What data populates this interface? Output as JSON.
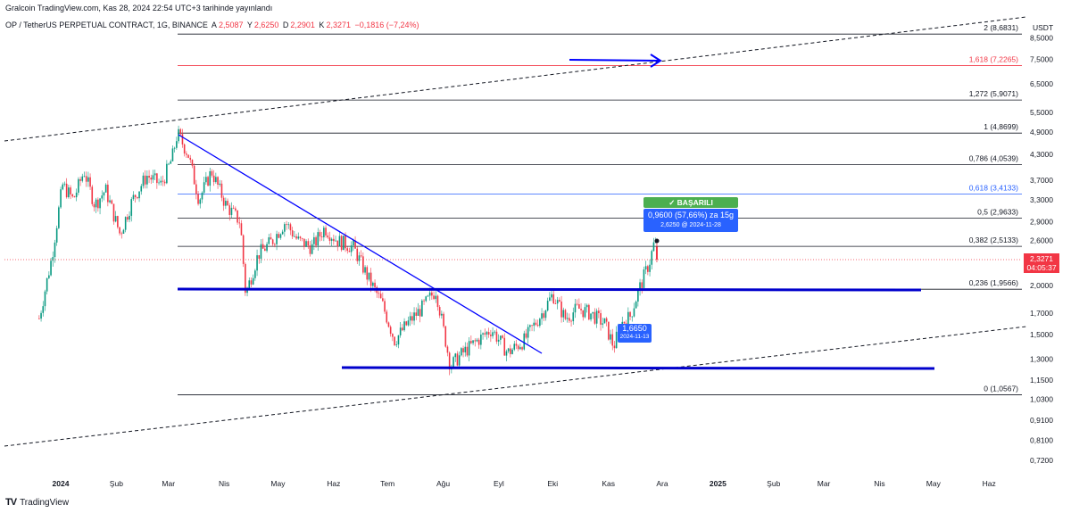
{
  "header": {
    "credit": "Gralcoin TradingView.com, Kas 28, 2024 22:54 UTC+3 tarihinde yayınlandı",
    "symbol": "OP / TetherUS PERPETUAL CONTRACT, 1G, BINANCE",
    "open_label": "A",
    "open": "2,5087",
    "high_label": "Y",
    "high": "2,6250",
    "low_label": "D",
    "low": "2,2901",
    "close_label": "K",
    "close": "2,3271",
    "change": "−0,1816 (−7,24%)"
  },
  "footer": {
    "logo": "TV",
    "brand": "TradingView"
  },
  "price_axis": {
    "currency": "USDT",
    "current_price": "2,3271",
    "countdown": "04:05:37"
  },
  "annotations": {
    "success_badge": "✓ BAŞARILI",
    "projection_main": "0,9600 (57,66%) za 15g",
    "projection_sub": "2,6250 @ 2024-11-28",
    "entry_main": "1,6650",
    "entry_sub": "2024-11-13"
  },
  "colors": {
    "up": "#089981",
    "down": "#f23645",
    "trendline": "#0000ff",
    "fib_black": "#131722",
    "fib_red": "#f23645",
    "fib_blue": "#2962ff",
    "success": "#4caf50",
    "label_blue": "#2962ff"
  },
  "chart_data": {
    "type": "candlestick",
    "scale": "log",
    "yticks": [
      "8,5000",
      "7,5000",
      "6,5000",
      "5,5000",
      "4,9000",
      "4,3000",
      "3,7000",
      "3,3000",
      "2,9000",
      "2,6000",
      "2,3000",
      "2,0000",
      "1,7000",
      "1,5000",
      "1,3000",
      "1,1500",
      "1,0300",
      "0,9100",
      "0,8100",
      "0,7200"
    ],
    "ytick_values": [
      8.5,
      7.5,
      6.5,
      5.5,
      4.9,
      4.3,
      3.7,
      3.3,
      2.9,
      2.6,
      2.3,
      2.0,
      1.7,
      1.5,
      1.3,
      1.15,
      1.03,
      0.91,
      0.81,
      0.72
    ],
    "xticks": [
      "2024",
      "Şub",
      "Mar",
      "Nis",
      "May",
      "Haz",
      "Tem",
      "Ağu",
      "Eyl",
      "Eki",
      "Kas",
      "Ara",
      "2025",
      "Şub",
      "Mar",
      "Nis",
      "May",
      "Haz"
    ],
    "xtick_dates": [
      "2024-01-01",
      "2024-02-01",
      "2024-03-01",
      "2024-04-01",
      "2024-05-01",
      "2024-06-01",
      "2024-07-01",
      "2024-08-01",
      "2024-09-01",
      "2024-10-01",
      "2024-11-01",
      "2024-12-01",
      "2025-01-01",
      "2025-02-01",
      "2025-03-01",
      "2025-04-01",
      "2025-05-01",
      "2025-06-01"
    ],
    "fib_levels": [
      {
        "label": "2 (8,6831)",
        "value": 8.6831,
        "color": "#131722"
      },
      {
        "label": "1,618 (7,2265)",
        "value": 7.2265,
        "color": "#f23645"
      },
      {
        "label": "1,272 (5,9071)",
        "value": 5.9071,
        "color": "#131722"
      },
      {
        "label": "1 (4,8699)",
        "value": 4.8699,
        "color": "#131722"
      },
      {
        "label": "0,786 (4,0539)",
        "value": 4.0539,
        "color": "#131722"
      },
      {
        "label": "0,618 (3,4133)",
        "value": 3.4133,
        "color": "#2962ff"
      },
      {
        "label": "0,5 (2,9633)",
        "value": 2.9633,
        "color": "#131722"
      },
      {
        "label": "0,382 (2,5133)",
        "value": 2.5133,
        "color": "#131722"
      },
      {
        "label": "0,236 (1,9566)",
        "value": 1.9566,
        "color": "#131722"
      },
      {
        "label": "0 (1,0567)",
        "value": 1.0567,
        "color": "#131722"
      }
    ],
    "price_path": [
      [
        "2023-12-20",
        1.65
      ],
      [
        "2023-12-27",
        2.35
      ],
      [
        "2024-01-02",
        3.6
      ],
      [
        "2024-01-08",
        3.3
      ],
      [
        "2024-01-14",
        3.9
      ],
      [
        "2024-01-20",
        3.2
      ],
      [
        "2024-01-26",
        3.5
      ],
      [
        "2024-02-03",
        2.7
      ],
      [
        "2024-02-10",
        3.3
      ],
      [
        "2024-02-18",
        3.8
      ],
      [
        "2024-02-26",
        3.6
      ],
      [
        "2024-03-03",
        4.2
      ],
      [
        "2024-03-06",
        4.87
      ],
      [
        "2024-03-12",
        4.3
      ],
      [
        "2024-03-18",
        3.3
      ],
      [
        "2024-03-25",
        3.9
      ],
      [
        "2024-04-02",
        3.2
      ],
      [
        "2024-04-10",
        2.9
      ],
      [
        "2024-04-13",
        1.9
      ],
      [
        "2024-04-20",
        2.4
      ],
      [
        "2024-04-28",
        2.6
      ],
      [
        "2024-05-05",
        2.9
      ],
      [
        "2024-05-12",
        2.6
      ],
      [
        "2024-05-20",
        2.5
      ],
      [
        "2024-05-27",
        2.8
      ],
      [
        "2024-06-03",
        2.6
      ],
      [
        "2024-06-12",
        2.5
      ],
      [
        "2024-06-20",
        2.1
      ],
      [
        "2024-06-28",
        1.8
      ],
      [
        "2024-07-05",
        1.45
      ],
      [
        "2024-07-12",
        1.6
      ],
      [
        "2024-07-20",
        1.75
      ],
      [
        "2024-07-28",
        1.95
      ],
      [
        "2024-08-05",
        1.25
      ],
      [
        "2024-08-12",
        1.35
      ],
      [
        "2024-08-20",
        1.45
      ],
      [
        "2024-08-28",
        1.55
      ],
      [
        "2024-09-06",
        1.35
      ],
      [
        "2024-09-15",
        1.45
      ],
      [
        "2024-09-25",
        1.7
      ],
      [
        "2024-10-01",
        1.9
      ],
      [
        "2024-10-08",
        1.65
      ],
      [
        "2024-10-15",
        1.75
      ],
      [
        "2024-10-22",
        1.7
      ],
      [
        "2024-10-30",
        1.6
      ],
      [
        "2024-11-04",
        1.4
      ],
      [
        "2024-11-08",
        1.6
      ],
      [
        "2024-11-13",
        1.665
      ],
      [
        "2024-11-18",
        1.95
      ],
      [
        "2024-11-24",
        2.3
      ],
      [
        "2024-11-27",
        2.62
      ],
      [
        "2024-11-28",
        2.3271
      ]
    ]
  }
}
